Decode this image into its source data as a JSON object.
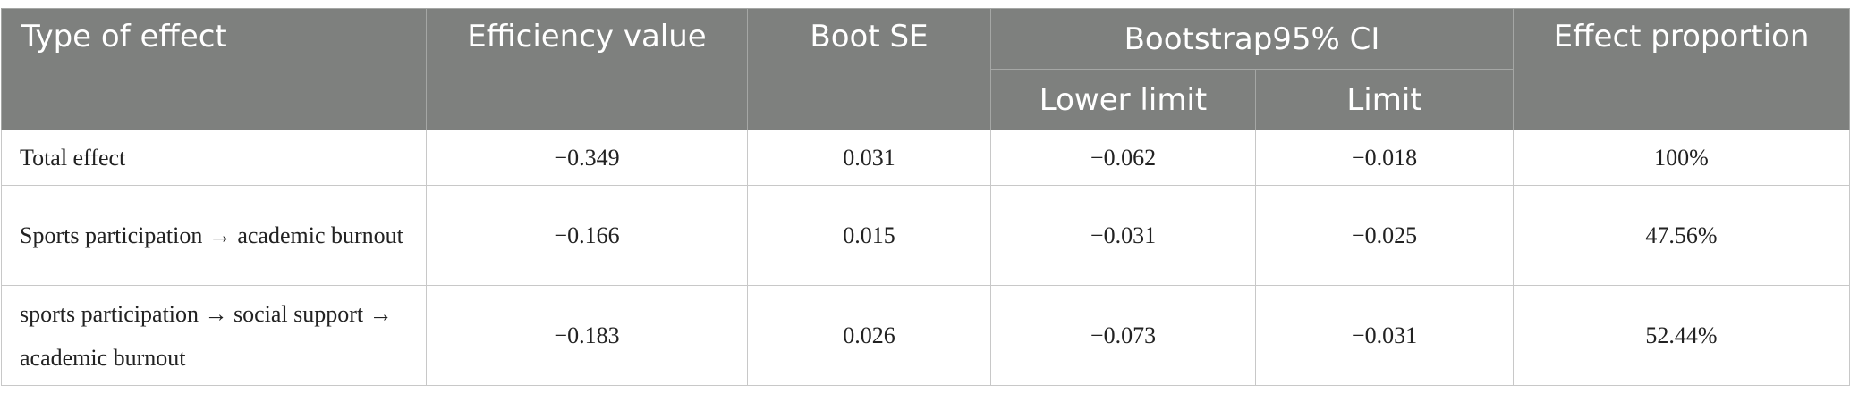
{
  "table": {
    "headers": {
      "type": "Type of effect",
      "efficiency": "Efficiency value",
      "boot_se": "Boot SE",
      "ci_group": "Bootstrap95% CI",
      "lower": "Lower limit",
      "limit": "Limit",
      "proportion": "Effect proportion"
    },
    "rows": [
      {
        "type": "Total effect",
        "efficiency": "−0.349",
        "boot_se": "0.031",
        "lower": "−0.062",
        "limit": "−0.018",
        "proportion": "100%"
      },
      {
        "type": "Sports participation → academic burnout",
        "efficiency": "−0.166",
        "boot_se": "0.015",
        "lower": "−0.031",
        "limit": "−0.025",
        "proportion": "47.56%"
      },
      {
        "type": "sports participation → social support → academic burnout",
        "efficiency": "−0.183",
        "boot_se": "0.026",
        "lower": "−0.073",
        "limit": "−0.031",
        "proportion": "52.44%"
      }
    ]
  }
}
